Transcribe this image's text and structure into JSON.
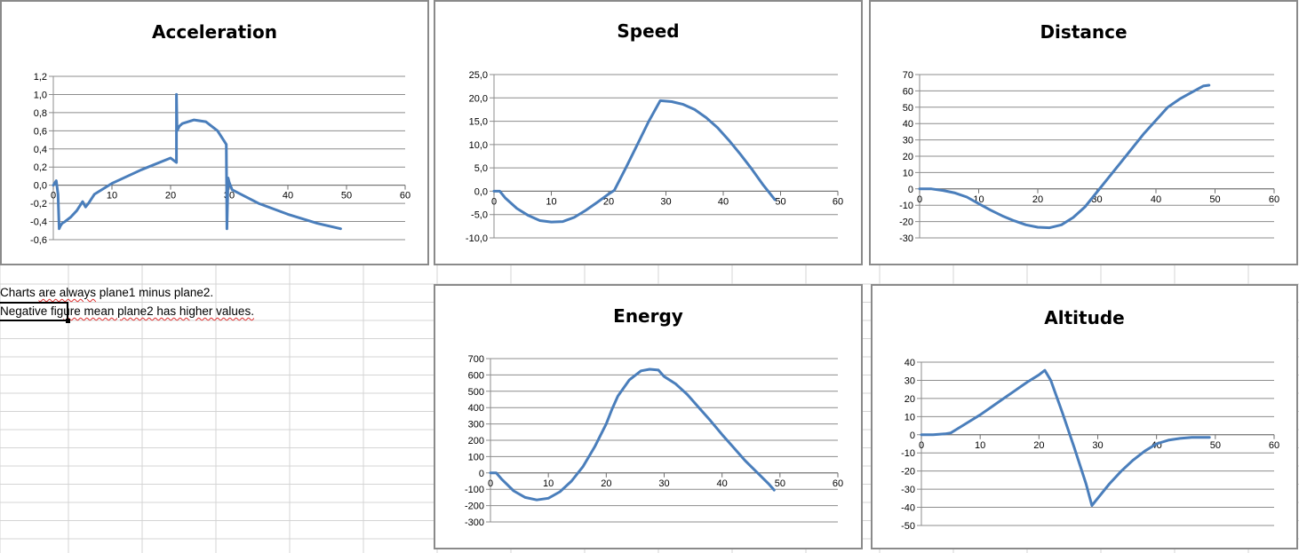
{
  "notes": {
    "line1_a": "Charts ",
    "line1_sq1": "are always",
    "line1_b": " plane1 minus plane2.",
    "line2_a": "Negative fig",
    "line2_sq": "ure mean plane2 has higher values."
  },
  "colors": {
    "series": "#4a7ebb",
    "gridline": "#8c8c8c",
    "chart_border": "#8a8a8a",
    "cell_grid": "#d4d4d4"
  },
  "chart_data": [
    {
      "id": "acceleration",
      "type": "line",
      "title": "Acceleration",
      "xlim": [
        0,
        60
      ],
      "xticks": [
        0,
        10,
        20,
        30,
        40,
        50,
        60
      ],
      "ylim": [
        -0.6,
        1.2
      ],
      "yticks": [
        -0.6,
        -0.4,
        -0.2,
        0.0,
        0.2,
        0.4,
        0.6,
        0.8,
        1.0,
        1.2
      ],
      "ytick_labels": [
        "-0,6",
        "-0,4",
        "-0,2",
        "0,0",
        "0,2",
        "0,4",
        "0,6",
        "0,8",
        "1,0",
        "1,2"
      ],
      "x": [
        0,
        0.5,
        0.8,
        1.0,
        1.2,
        1.5,
        2,
        3,
        4,
        5,
        5.5,
        6,
        7,
        10,
        15,
        20,
        21,
        21,
        21.1,
        21.5,
        22,
        24,
        26,
        28,
        29,
        29.5,
        29.6,
        29.8,
        30,
        30.5,
        35,
        40,
        45,
        49
      ],
      "y": [
        0.0,
        0.05,
        -0.1,
        -0.48,
        -0.45,
        -0.42,
        -0.4,
        -0.35,
        -0.28,
        -0.18,
        -0.24,
        -0.2,
        -0.1,
        0.02,
        0.17,
        0.3,
        0.25,
        1.0,
        0.6,
        0.65,
        0.68,
        0.72,
        0.7,
        0.6,
        0.5,
        0.45,
        -0.48,
        0.08,
        0.03,
        -0.05,
        -0.2,
        -0.32,
        -0.42,
        -0.48
      ]
    },
    {
      "id": "speed",
      "type": "line",
      "title": "Speed",
      "xlim": [
        0,
        60
      ],
      "xticks": [
        0,
        10,
        20,
        30,
        40,
        50,
        60
      ],
      "ylim": [
        -10,
        25
      ],
      "yticks": [
        -10,
        -5,
        0,
        5,
        10,
        15,
        20,
        25
      ],
      "ytick_labels": [
        "-10,0",
        "-5,0",
        "0,0",
        "5,0",
        "10,0",
        "15,0",
        "20,0",
        "25,0"
      ],
      "x": [
        0,
        1,
        2,
        4,
        6,
        8,
        10,
        12,
        14,
        16,
        18,
        20,
        21,
        23,
        25,
        27,
        29,
        31,
        33,
        35,
        37,
        39,
        41,
        43,
        45,
        47,
        49
      ],
      "y": [
        0,
        0,
        -1.5,
        -3.7,
        -5.2,
        -6.3,
        -6.6,
        -6.5,
        -5.6,
        -4.1,
        -2.4,
        -0.6,
        0.2,
        5,
        10,
        15,
        19.4,
        19.2,
        18.6,
        17.5,
        15.8,
        13.6,
        10.9,
        7.9,
        4.7,
        1.3,
        -1.8
      ]
    },
    {
      "id": "distance",
      "type": "line",
      "title": "Distance",
      "xlim": [
        0,
        60
      ],
      "xticks": [
        0,
        10,
        20,
        30,
        40,
        50,
        60
      ],
      "ylim": [
        -30,
        70
      ],
      "yticks": [
        -30,
        -20,
        -10,
        0,
        10,
        20,
        30,
        40,
        50,
        60,
        70
      ],
      "ytick_labels": [
        "-30",
        "-20",
        "-10",
        "0",
        "10",
        "20",
        "30",
        "40",
        "50",
        "60",
        "70"
      ],
      "x": [
        0,
        2,
        4,
        6,
        8,
        10,
        12,
        14,
        16,
        18,
        20,
        22,
        24,
        26,
        28,
        30,
        32,
        34,
        36,
        38,
        40,
        42,
        44,
        46,
        48,
        49
      ],
      "y": [
        0,
        0,
        -1,
        -2.5,
        -5,
        -9,
        -13,
        -16.5,
        -19.5,
        -22,
        -23.5,
        -23.8,
        -22,
        -17.5,
        -11,
        -2,
        7,
        16,
        25,
        34,
        42,
        50,
        55,
        59,
        63,
        63.5
      ]
    },
    {
      "id": "energy",
      "type": "line",
      "title": "Energy",
      "xlim": [
        0,
        60
      ],
      "xticks": [
        0,
        10,
        20,
        30,
        40,
        50,
        60
      ],
      "ylim": [
        -300,
        700
      ],
      "yticks": [
        -300,
        -200,
        -100,
        0,
        100,
        200,
        300,
        400,
        500,
        600,
        700
      ],
      "ytick_labels": [
        "-300",
        "-200",
        "-100",
        "0",
        "100",
        "200",
        "300",
        "400",
        "500",
        "600",
        "700"
      ],
      "x": [
        0,
        1,
        2,
        4,
        6,
        8,
        10,
        12,
        14,
        16,
        18,
        20,
        21,
        22,
        24,
        26,
        27.5,
        29,
        30,
        32,
        34,
        36,
        38,
        40,
        42,
        44,
        46,
        48,
        49
      ],
      "y": [
        0,
        0,
        -40,
        -110,
        -150,
        -165,
        -155,
        -115,
        -50,
        40,
        160,
        300,
        390,
        470,
        570,
        625,
        635,
        630,
        590,
        545,
        480,
        400,
        320,
        235,
        155,
        75,
        5,
        -65,
        -105
      ]
    },
    {
      "id": "altitude",
      "type": "line",
      "title": "Altitude",
      "xlim": [
        0,
        60
      ],
      "xticks": [
        0,
        10,
        20,
        30,
        40,
        50,
        60
      ],
      "ylim": [
        -50,
        40
      ],
      "yticks": [
        -50,
        -40,
        -30,
        -20,
        -10,
        0,
        10,
        20,
        30,
        40
      ],
      "ytick_labels": [
        "-50",
        "-40",
        "-30",
        "-20",
        "-10",
        "0",
        "10",
        "20",
        "30",
        "40"
      ],
      "x": [
        0,
        2,
        4,
        5,
        6,
        8,
        10,
        12,
        14,
        16,
        18,
        20,
        21,
        22,
        24,
        26,
        28,
        29,
        30,
        32,
        34,
        36,
        38,
        40,
        42,
        44,
        46,
        48,
        49
      ],
      "y": [
        0,
        0,
        0.5,
        1,
        3,
        7,
        11,
        15.5,
        20,
        24.5,
        29,
        33,
        35.5,
        30,
        12,
        -7,
        -27,
        -39,
        -35,
        -27,
        -20,
        -14,
        -9,
        -5,
        -3,
        -2,
        -1.5,
        -1.5,
        -1.5
      ]
    }
  ]
}
